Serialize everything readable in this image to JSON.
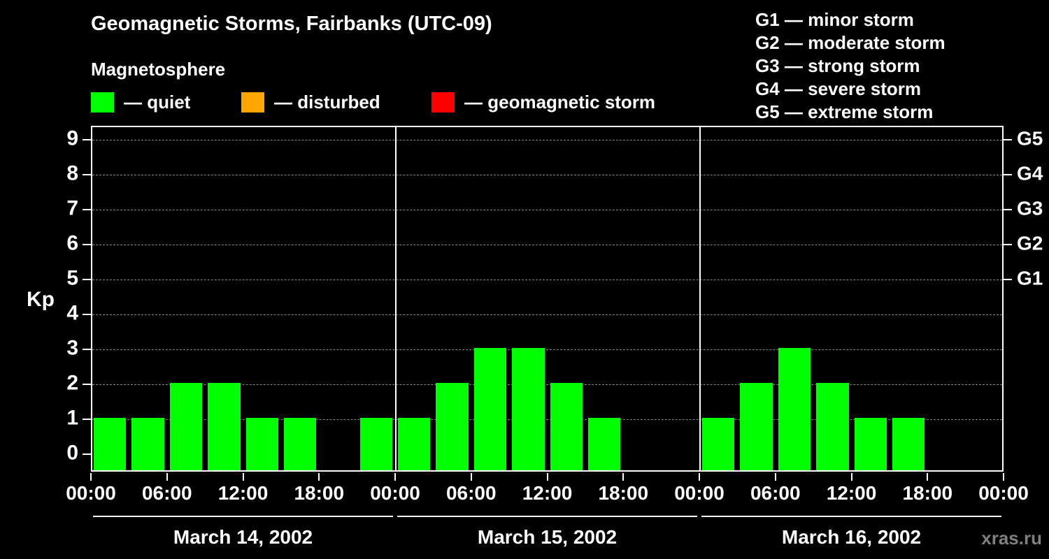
{
  "header": {
    "title": "Geomagnetic Storms, Fairbanks (UTC-09)",
    "subtitle": "Magnetosphere"
  },
  "legend": [
    {
      "label": "— quiet",
      "color": "#00ff00"
    },
    {
      "label": "— disturbed",
      "color": "#ffa500"
    },
    {
      "label": "— geomagnetic storm",
      "color": "#ff0000"
    }
  ],
  "g_legend": [
    "G1 — minor storm",
    "G2 — moderate storm",
    "G3 — strong storm",
    "G4 — severe storm",
    "G5 — extreme storm"
  ],
  "axis": {
    "kp_label": "Kp"
  },
  "watermark": "xras.ru",
  "chart_data": {
    "type": "bar",
    "title": "Geomagnetic Storms, Fairbanks (UTC-09)",
    "ylabel": "Kp",
    "ylim": [
      0,
      9
    ],
    "yticks": [
      0,
      1,
      2,
      3,
      4,
      5,
      6,
      7,
      8,
      9
    ],
    "grid": "dashed horizontal at each Kp level",
    "bar_color": "#00ff00",
    "x_tick_labels": [
      "00:00",
      "06:00",
      "12:00",
      "18:00"
    ],
    "x_final_label": "00:00",
    "right_axis": [
      {
        "label": "G1",
        "kp": 5
      },
      {
        "label": "G2",
        "kp": 6
      },
      {
        "label": "G3",
        "kp": 7
      },
      {
        "label": "G4",
        "kp": 8
      },
      {
        "label": "G5",
        "kp": 9
      }
    ],
    "days": [
      {
        "date": "March 14, 2002",
        "values": [
          1,
          1,
          2,
          2,
          1,
          1,
          0,
          1
        ]
      },
      {
        "date": "March 15, 2002",
        "values": [
          1,
          2,
          3,
          3,
          2,
          1,
          0,
          0
        ]
      },
      {
        "date": "March 16, 2002",
        "values": [
          1,
          2,
          3,
          2,
          1,
          1,
          0,
          0
        ]
      }
    ]
  }
}
